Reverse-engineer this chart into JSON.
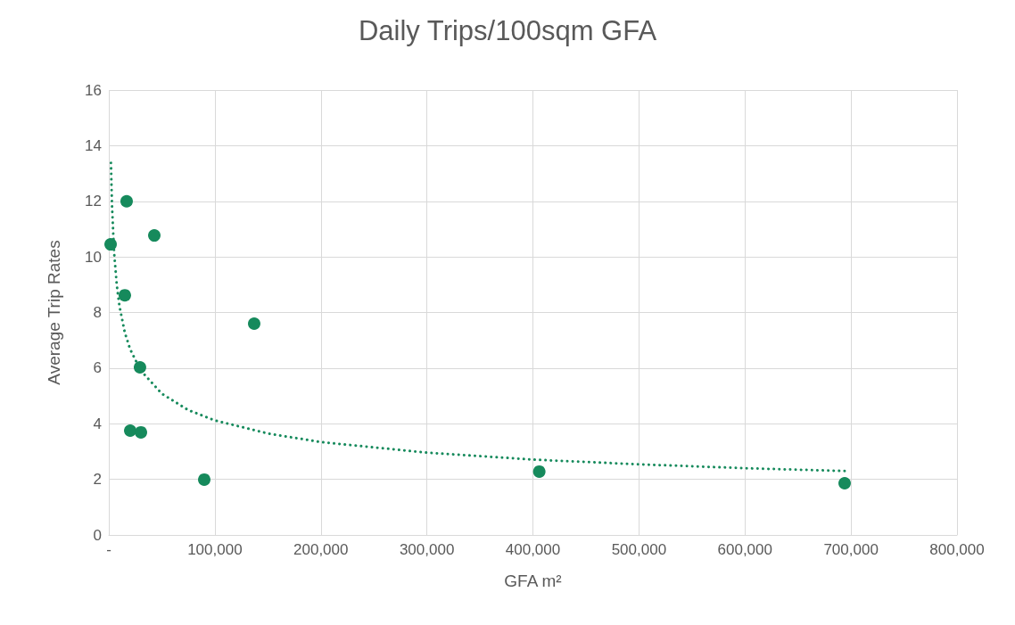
{
  "chart_data": {
    "type": "scatter",
    "title": "Daily Trips/100sqm GFA",
    "xlabel": "GFA m²",
    "ylabel": "Average Trip Rates",
    "series": [
      {
        "color": "#168a5c",
        "marker": "circle",
        "x": [
          1700,
          16800,
          42900,
          15100,
          137100,
          29400,
          20200,
          30300,
          90000,
          406000,
          694000
        ],
        "values": [
          10.45,
          12.0,
          10.77,
          8.62,
          7.6,
          6.03,
          3.75,
          3.69,
          1.99,
          2.28,
          1.86
        ]
      },
      {
        "type": "line",
        "color": "#168a5c",
        "marker": "none",
        "line_style": "dotted",
        "x": [
          2000,
          3000,
          5000,
          7500,
          10000,
          15000,
          20000,
          30000,
          50000,
          75000,
          100000,
          150000,
          200000,
          300000,
          400000,
          500000,
          600000,
          694000
        ],
        "values": [
          13.38,
          11.84,
          10.15,
          8.99,
          8.24,
          7.29,
          6.69,
          5.92,
          5.08,
          4.49,
          4.12,
          3.65,
          3.34,
          2.96,
          2.71,
          2.54,
          2.4,
          2.3
        ]
      }
    ],
    "xlim": [
      0,
      800000
    ],
    "xticks": [
      {
        "value": 0,
        "label": "-"
      },
      {
        "value": 100000,
        "label": "100,000"
      },
      {
        "value": 200000,
        "label": "200,000"
      },
      {
        "value": 300000,
        "label": "300,000"
      },
      {
        "value": 400000,
        "label": "400,000"
      },
      {
        "value": 500000,
        "label": "500,000"
      },
      {
        "value": 600000,
        "label": "600,000"
      },
      {
        "value": 700000,
        "label": "700,000"
      },
      {
        "value": 800000,
        "label": "800,000"
      }
    ],
    "ylim": [
      0,
      16
    ],
    "yticks": [
      0,
      2,
      4,
      6,
      8,
      10,
      12,
      14,
      16
    ],
    "grid": true
  }
}
